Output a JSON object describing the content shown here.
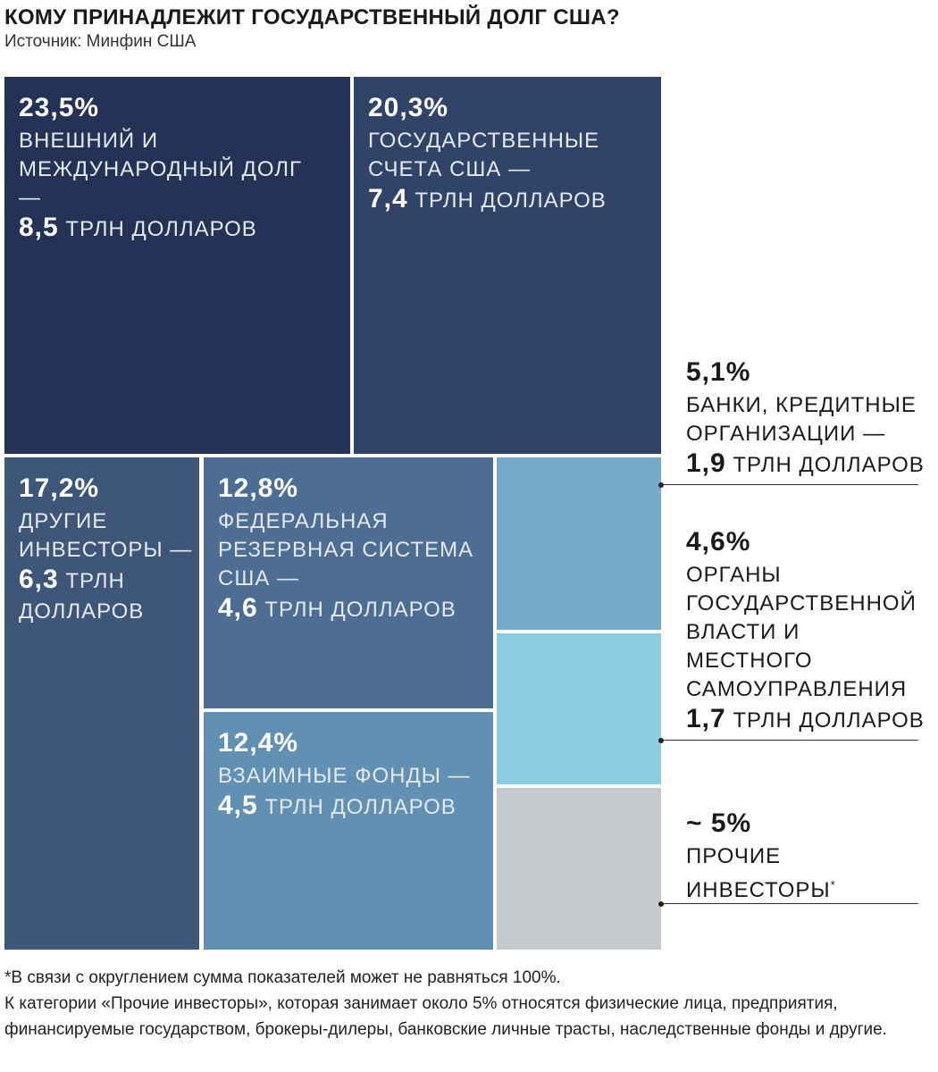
{
  "chart_data": {
    "type": "treemap",
    "title": "КОМУ ПРИНАДЛЕЖИТ ГОСУДАРСТВЕННЫЙ ДОЛГ США?",
    "subtitle": "Источник: Минфин США",
    "categories": [
      "ВНЕШНИЙ И МЕЖДУНАРОДНЫЙ ДОЛГ —",
      "ГОСУДАРСТВЕННЫЕ СЧЕТА США —",
      "ДРУГИЕ ИНВЕСТОРЫ —",
      "ФЕДЕРАЛЬНАЯ РЕЗЕРВНАЯ СИСТЕМА США —",
      "ВЗАИМНЫЕ ФОНДЫ —",
      "БАНКИ, КРЕДИТНЫЕ ОРГАНИЗАЦИИ —",
      "ОРГАНЫ ГОСУДАРСТВЕННОЙ ВЛАСТИ И МЕСТНОГО САМОУПРАВЛЕНИЯ",
      "ПРОЧИЕ ИНВЕСТОРЫ"
    ],
    "values": [
      23.5,
      20.3,
      17.2,
      12.8,
      12.4,
      5.1,
      4.6,
      5
    ],
    "value_labels": [
      "23,5%",
      "20,3%",
      "17,2%",
      "12,8%",
      "12,4%",
      "5,1%",
      "4,6%",
      "~ 5%"
    ],
    "amounts": [
      8.5,
      7.4,
      6.3,
      4.6,
      4.5,
      1.9,
      1.7,
      null
    ],
    "amount_labels": [
      "8,5",
      "7,4",
      "6,3",
      "4,6",
      "4,5",
      "1,9",
      "1,7",
      null
    ],
    "amount_unit": "ТРЛН ДОЛЛАРОВ",
    "colors": [
      "#243255",
      "#2f4466",
      "#3e5779",
      "#4d6e92",
      "#6190b2",
      "#76abc9",
      "#8ccce3",
      "#c7cacd"
    ],
    "footnote_marker": "*",
    "footnotes": [
      "*В связи с округлением сумма показателей может не равняться 100%.",
      "К категории «Прочие инвесторы», которая занимает около 5% относятся физические лица, предприятия, финансируемые государством, брокеры-дилеры, банковские личные трасты, наследственные фонды и другие."
    ]
  }
}
